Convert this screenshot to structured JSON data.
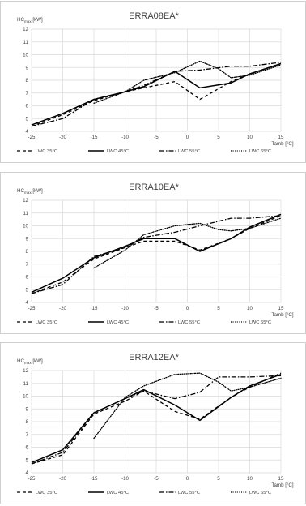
{
  "chart_data": [
    {
      "type": "line",
      "title": "ERRA08EA*",
      "ylabel_main": "HC",
      "ylabel_sub": "max",
      "ylabel_unit": " [kW]",
      "xlabel": "Tamb [°C]",
      "x_ticks": [
        "-25",
        "-20",
        "-15",
        "-10",
        "-5",
        "0",
        "5",
        "10",
        "15"
      ],
      "y_ticks": [
        "4",
        "5",
        "6",
        "7",
        "8",
        "9",
        "10",
        "11",
        "12"
      ],
      "xlim": [
        -25,
        15
      ],
      "ylim": [
        4,
        12
      ],
      "grid": true,
      "legend_position": "bottom",
      "series": [
        {
          "name": "LWC 35°C",
          "dash": "dashed",
          "points": [
            [
              -25,
              4.4
            ],
            [
              -20,
              5.3
            ],
            [
              -15,
              6.4
            ],
            [
              -10,
              7.1
            ],
            [
              -7,
              7.4
            ],
            [
              -2,
              7.9
            ],
            [
              2,
              6.5
            ],
            [
              7,
              7.9
            ],
            [
              10,
              8.5
            ],
            [
              15,
              9.3
            ]
          ]
        },
        {
          "name": "LWC 45°C",
          "dash": "solid",
          "points": [
            [
              -25,
              4.5
            ],
            [
              -20,
              5.4
            ],
            [
              -15,
              6.5
            ],
            [
              -10,
              7.1
            ],
            [
              -7,
              7.5
            ],
            [
              -2,
              8.7
            ],
            [
              2,
              7.4
            ],
            [
              7,
              7.8
            ],
            [
              10,
              8.5
            ],
            [
              15,
              9.3
            ]
          ]
        },
        {
          "name": "LWC 55°C",
          "dash": "dashdot",
          "points": [
            [
              -25,
              4.4
            ],
            [
              -20,
              5.0
            ],
            [
              -15,
              6.5
            ],
            [
              -10,
              7.1
            ],
            [
              -7,
              7.6
            ],
            [
              -2,
              8.7
            ],
            [
              2,
              8.8
            ],
            [
              7,
              9.1
            ],
            [
              10,
              9.1
            ],
            [
              15,
              9.4
            ]
          ]
        },
        {
          "name": "LWC 65°C",
          "dash": "dotted",
          "points": [
            [
              -15,
              6.2
            ],
            [
              -10,
              7.1
            ],
            [
              -7,
              8.0
            ],
            [
              -2,
              8.6
            ],
            [
              2,
              9.5
            ],
            [
              5,
              8.9
            ],
            [
              7,
              8.2
            ],
            [
              10,
              8.4
            ],
            [
              15,
              9.2
            ]
          ]
        }
      ]
    },
    {
      "type": "line",
      "title": "ERRA10EA*",
      "ylabel_main": "HC",
      "ylabel_sub": "max",
      "ylabel_unit": " [kW]",
      "xlabel": "Tamb [°C]",
      "x_ticks": [
        "-25",
        "-20",
        "-15",
        "-10",
        "-5",
        "0",
        "5",
        "10",
        "15"
      ],
      "y_ticks": [
        "4",
        "5",
        "6",
        "7",
        "8",
        "9",
        "10",
        "11",
        "12"
      ],
      "xlim": [
        -25,
        15
      ],
      "ylim": [
        4,
        12
      ],
      "grid": true,
      "legend_position": "bottom",
      "series": [
        {
          "name": "LWC 35°C",
          "dash": "dashed",
          "points": [
            [
              -25,
              4.7
            ],
            [
              -20,
              5.6
            ],
            [
              -15,
              7.4
            ],
            [
              -10,
              8.3
            ],
            [
              -7,
              8.8
            ],
            [
              -2,
              8.8
            ],
            [
              2,
              8.1
            ],
            [
              7,
              9.0
            ],
            [
              10,
              9.8
            ],
            [
              15,
              10.8
            ]
          ]
        },
        {
          "name": "LWC 45°C",
          "dash": "solid",
          "points": [
            [
              -25,
              4.8
            ],
            [
              -20,
              5.9
            ],
            [
              -15,
              7.5
            ],
            [
              -10,
              8.4
            ],
            [
              -7,
              9.0
            ],
            [
              -2,
              9.0
            ],
            [
              2,
              8.0
            ],
            [
              7,
              9.0
            ],
            [
              10,
              9.9
            ],
            [
              15,
              10.9
            ]
          ]
        },
        {
          "name": "LWC 55°C",
          "dash": "dashdot",
          "points": [
            [
              -25,
              4.7
            ],
            [
              -20,
              5.4
            ],
            [
              -15,
              7.6
            ],
            [
              -10,
              8.3
            ],
            [
              -7,
              9.1
            ],
            [
              -2,
              9.5
            ],
            [
              2,
              10.0
            ],
            [
              7,
              10.6
            ],
            [
              10,
              10.6
            ],
            [
              15,
              10.8
            ]
          ]
        },
        {
          "name": "LWC 65°C",
          "dash": "dotted",
          "points": [
            [
              -15,
              6.7
            ],
            [
              -10,
              8.1
            ],
            [
              -7,
              9.3
            ],
            [
              -2,
              10.0
            ],
            [
              2,
              10.2
            ],
            [
              5,
              9.7
            ],
            [
              7,
              9.6
            ],
            [
              10,
              9.8
            ],
            [
              15,
              10.6
            ]
          ]
        }
      ]
    },
    {
      "type": "line",
      "title": "ERRA12EA*",
      "ylabel_main": "HC",
      "ylabel_sub": "max",
      "ylabel_unit": " [kW]",
      "xlabel": "Tamb [°C]",
      "x_ticks": [
        "-25",
        "-20",
        "-15",
        "-10",
        "-5",
        "0",
        "5",
        "10",
        "15"
      ],
      "y_ticks": [
        "4",
        "5",
        "6",
        "7",
        "8",
        "9",
        "10",
        "11",
        "12"
      ],
      "xlim": [
        -25,
        15
      ],
      "ylim": [
        4,
        12
      ],
      "grid": true,
      "legend_position": "bottom",
      "series": [
        {
          "name": "LWC 35°C",
          "dash": "dashed",
          "points": [
            [
              -25,
              4.7
            ],
            [
              -20,
              5.4
            ],
            [
              -15,
              8.6
            ],
            [
              -10,
              9.6
            ],
            [
              -7,
              10.4
            ],
            [
              -2,
              8.8
            ],
            [
              2,
              8.2
            ],
            [
              7,
              9.9
            ],
            [
              10,
              10.7
            ],
            [
              15,
              11.8
            ]
          ]
        },
        {
          "name": "LWC 45°C",
          "dash": "solid",
          "points": [
            [
              -25,
              4.8
            ],
            [
              -20,
              5.8
            ],
            [
              -15,
              8.7
            ],
            [
              -10,
              9.8
            ],
            [
              -7,
              10.5
            ],
            [
              -2,
              9.3
            ],
            [
              2,
              8.1
            ],
            [
              7,
              9.9
            ],
            [
              10,
              10.8
            ],
            [
              15,
              11.7
            ]
          ]
        },
        {
          "name": "LWC 55°C",
          "dash": "dashdot",
          "points": [
            [
              -25,
              4.7
            ],
            [
              -20,
              5.6
            ],
            [
              -15,
              8.7
            ],
            [
              -10,
              9.8
            ],
            [
              -7,
              10.4
            ],
            [
              -2,
              9.8
            ],
            [
              2,
              10.3
            ],
            [
              5,
              11.5
            ],
            [
              10,
              11.5
            ],
            [
              15,
              11.6
            ]
          ]
        },
        {
          "name": "LWC 65°C",
          "dash": "dotted",
          "points": [
            [
              -15,
              6.7
            ],
            [
              -10,
              9.9
            ],
            [
              -7,
              10.8
            ],
            [
              -2,
              11.7
            ],
            [
              2,
              11.8
            ],
            [
              5,
              11.1
            ],
            [
              7,
              10.4
            ],
            [
              10,
              10.7
            ],
            [
              15,
              11.4
            ]
          ]
        }
      ]
    }
  ]
}
